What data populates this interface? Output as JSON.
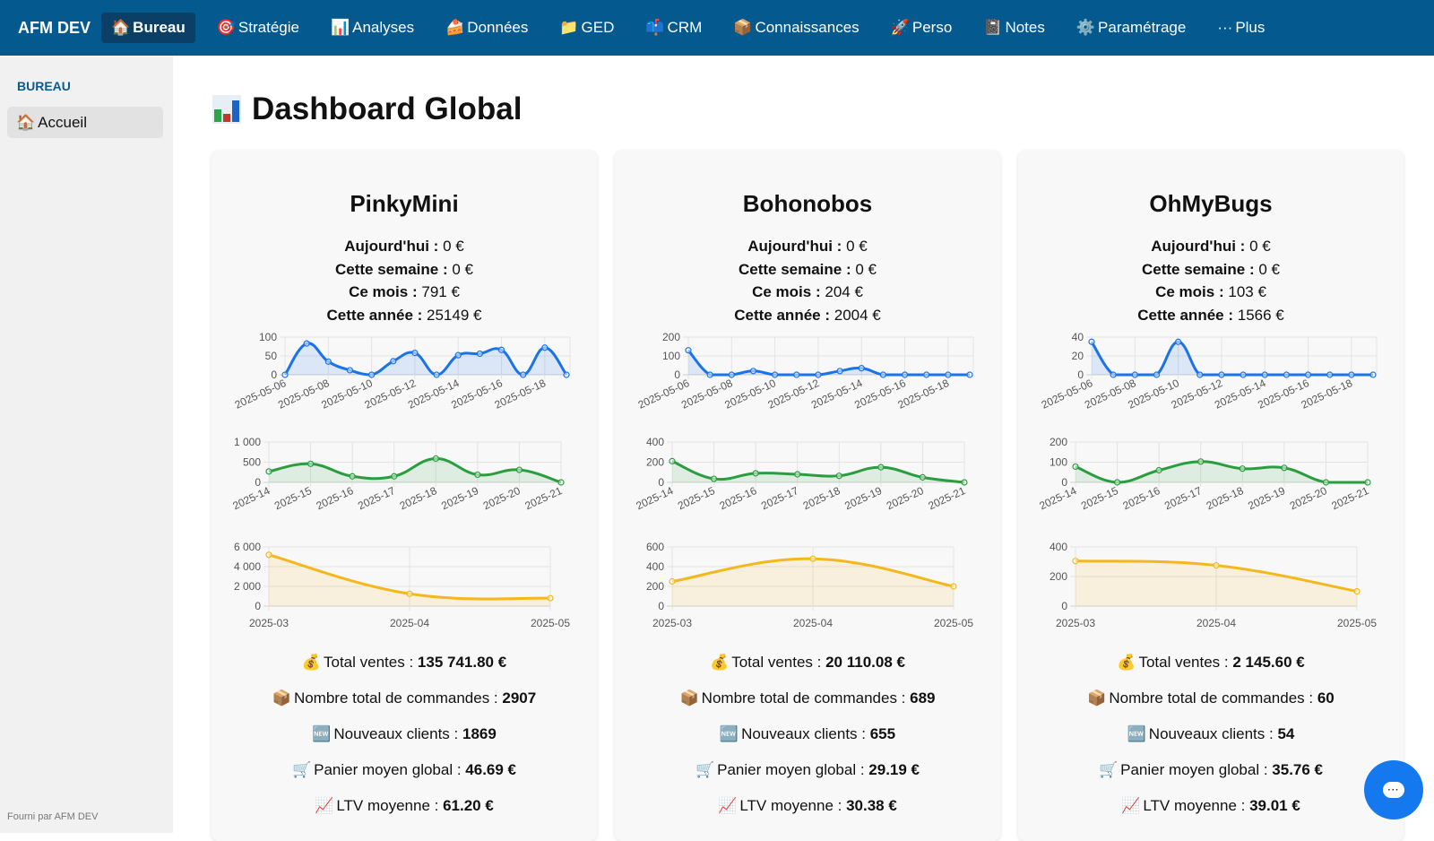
{
  "topbar": {
    "brand": "AFM DEV",
    "items": [
      {
        "icon": "🏠",
        "label": "Bureau",
        "active": true
      },
      {
        "icon": "🎯",
        "label": "Stratégie"
      },
      {
        "icon": "📊",
        "label": "Analyses"
      },
      {
        "icon": "🍰",
        "label": "Données"
      },
      {
        "icon": "📁",
        "label": "GED"
      },
      {
        "icon": "📫",
        "label": "CRM"
      },
      {
        "icon": "📦",
        "label": "Connaissances"
      },
      {
        "icon": "🚀",
        "label": "Perso"
      },
      {
        "icon": "📓",
        "label": "Notes"
      },
      {
        "icon": "⚙️",
        "label": "Paramétrage"
      },
      {
        "icon": "···",
        "label": "Plus"
      }
    ]
  },
  "sidebar": {
    "heading": "BUREAU",
    "items": [
      {
        "icon": "🏠",
        "label": "Accueil"
      }
    ],
    "footer": "Fourni par AFM DEV"
  },
  "page": {
    "title_icon": "📊",
    "title": "Dashboard Global"
  },
  "labels": {
    "today": "Aujourd'hui :",
    "week": "Cette semaine :",
    "month": "Ce mois :",
    "year": "Cette année :",
    "total_sales": "Total ventes :",
    "orders": "Nombre total de commandes :",
    "new_clients": "Nouveaux clients :",
    "basket": "Panier moyen global :",
    "ltv": "LTV moyenne :"
  },
  "stat_icons": {
    "total_sales": "💰",
    "orders": "📦",
    "new_clients": "🆕",
    "basket": "🛒",
    "ltv": "📈"
  },
  "colors": {
    "daily": "#1a73e8",
    "weekly": "#2a9d3f",
    "monthly": "#f4b81c",
    "topbar": "#04598f"
  },
  "stores": [
    {
      "name": "PinkyMini",
      "today": "0 €",
      "week": "0 €",
      "month": "791 €",
      "year": "25149 €",
      "total_sales": "135 741.80 €",
      "orders": "2907",
      "new_clients": "1869",
      "basket": "46.69 €",
      "ltv": "61.20 €"
    },
    {
      "name": "Bohonobos",
      "today": "0 €",
      "week": "0 €",
      "month": "204 €",
      "year": "2004 €",
      "total_sales": "20 110.08 €",
      "orders": "689",
      "new_clients": "655",
      "basket": "29.19 €",
      "ltv": "30.38 €"
    },
    {
      "name": "OhMyBugs",
      "today": "0 €",
      "week": "0 €",
      "month": "103 €",
      "year": "1566 €",
      "total_sales": "2 145.60 €",
      "orders": "60",
      "new_clients": "54",
      "basket": "35.76 €",
      "ltv": "39.01 €"
    }
  ],
  "chart_data": [
    {
      "store": "PinkyMini",
      "type": "area",
      "series_kind": "daily",
      "x": [
        "2025-05-06",
        "2025-05-07",
        "2025-05-08",
        "2025-05-09",
        "2025-05-10",
        "2025-05-11",
        "2025-05-12",
        "2025-05-13",
        "2025-05-14",
        "2025-05-15",
        "2025-05-16",
        "2025-05-17",
        "2025-05-18",
        "2025-05-19"
      ],
      "tick_labels": [
        "2025-05-06",
        "2025-05-08",
        "2025-05-10",
        "2025-05-12",
        "2025-05-14",
        "2025-05-16",
        "2025-05-18"
      ],
      "values": [
        0,
        83,
        35,
        12,
        0,
        36,
        58,
        0,
        52,
        56,
        66,
        0,
        72,
        0
      ],
      "ylim": [
        0,
        100
      ],
      "yticks": [
        "0",
        "50",
        "100"
      ],
      "grid": true
    },
    {
      "store": "PinkyMini",
      "type": "area",
      "series_kind": "weekly",
      "x": [
        "2025-14",
        "2025-15",
        "2025-16",
        "2025-17",
        "2025-18",
        "2025-19",
        "2025-20",
        "2025-21"
      ],
      "tick_labels": [
        "2025-14",
        "2025-15",
        "2025-16",
        "2025-17",
        "2025-18",
        "2025-19",
        "2025-20",
        "2025-21"
      ],
      "values": [
        270,
        460,
        150,
        150,
        590,
        190,
        310,
        0
      ],
      "ylim": [
        0,
        1000
      ],
      "yticks": [
        "0",
        "500",
        "1 000"
      ],
      "grid": true
    },
    {
      "store": "PinkyMini",
      "type": "area",
      "series_kind": "monthly",
      "x": [
        "2025-03",
        "2025-04",
        "2025-05"
      ],
      "tick_labels": [
        "2025-03",
        "2025-04",
        "2025-05"
      ],
      "values": [
        5200,
        1250,
        800
      ],
      "ylim": [
        0,
        6000
      ],
      "yticks": [
        "0",
        "2 000",
        "4 000",
        "6 000"
      ],
      "grid": true
    },
    {
      "store": "Bohonobos",
      "type": "area",
      "series_kind": "daily",
      "x": [
        "2025-05-06",
        "2025-05-07",
        "2025-05-08",
        "2025-05-09",
        "2025-05-10",
        "2025-05-11",
        "2025-05-12",
        "2025-05-13",
        "2025-05-14",
        "2025-05-15",
        "2025-05-16",
        "2025-05-17",
        "2025-05-18",
        "2025-05-19"
      ],
      "tick_labels": [
        "2025-05-06",
        "2025-05-08",
        "2025-05-10",
        "2025-05-12",
        "2025-05-14",
        "2025-05-16",
        "2025-05-18"
      ],
      "values": [
        130,
        0,
        0,
        20,
        0,
        0,
        0,
        20,
        35,
        0,
        0,
        0,
        0,
        0
      ],
      "ylim": [
        0,
        200
      ],
      "yticks": [
        "0",
        "100",
        "200"
      ],
      "grid": true
    },
    {
      "store": "Bohonobos",
      "type": "area",
      "series_kind": "weekly",
      "x": [
        "2025-14",
        "2025-15",
        "2025-16",
        "2025-17",
        "2025-18",
        "2025-19",
        "2025-20",
        "2025-21"
      ],
      "tick_labels": [
        "2025-14",
        "2025-15",
        "2025-16",
        "2025-17",
        "2025-18",
        "2025-19",
        "2025-20",
        "2025-21"
      ],
      "values": [
        210,
        35,
        90,
        80,
        65,
        150,
        50,
        0
      ],
      "ylim": [
        0,
        400
      ],
      "yticks": [
        "0",
        "200",
        "400"
      ],
      "grid": true
    },
    {
      "store": "Bohonobos",
      "type": "area",
      "series_kind": "monthly",
      "x": [
        "2025-03",
        "2025-04",
        "2025-05"
      ],
      "tick_labels": [
        "2025-03",
        "2025-04",
        "2025-05"
      ],
      "values": [
        250,
        480,
        200
      ],
      "ylim": [
        0,
        600
      ],
      "yticks": [
        "0",
        "200",
        "400",
        "600"
      ],
      "grid": true
    },
    {
      "store": "OhMyBugs",
      "type": "area",
      "series_kind": "daily",
      "x": [
        "2025-05-06",
        "2025-05-07",
        "2025-05-08",
        "2025-05-09",
        "2025-05-10",
        "2025-05-11",
        "2025-05-12",
        "2025-05-13",
        "2025-05-14",
        "2025-05-15",
        "2025-05-16",
        "2025-05-17",
        "2025-05-18",
        "2025-05-19"
      ],
      "tick_labels": [
        "2025-05-06",
        "2025-05-08",
        "2025-05-10",
        "2025-05-12",
        "2025-05-14",
        "2025-05-16",
        "2025-05-18"
      ],
      "values": [
        35,
        0,
        0,
        0,
        35,
        0,
        0,
        0,
        0,
        0,
        0,
        0,
        0,
        0
      ],
      "ylim": [
        0,
        40
      ],
      "yticks": [
        "0",
        "20",
        "40"
      ],
      "grid": true
    },
    {
      "store": "OhMyBugs",
      "type": "area",
      "series_kind": "weekly",
      "x": [
        "2025-14",
        "2025-15",
        "2025-16",
        "2025-17",
        "2025-18",
        "2025-19",
        "2025-20",
        "2025-21"
      ],
      "tick_labels": [
        "2025-14",
        "2025-15",
        "2025-16",
        "2025-17",
        "2025-18",
        "2025-19",
        "2025-20",
        "2025-21"
      ],
      "values": [
        78,
        0,
        60,
        103,
        68,
        72,
        0,
        0
      ],
      "ylim": [
        0,
        200
      ],
      "yticks": [
        "0",
        "100",
        "200"
      ],
      "grid": true
    },
    {
      "store": "OhMyBugs",
      "type": "area",
      "series_kind": "monthly",
      "x": [
        "2025-03",
        "2025-04",
        "2025-05"
      ],
      "tick_labels": [
        "2025-03",
        "2025-04",
        "2025-05"
      ],
      "values": [
        305,
        275,
        100
      ],
      "ylim": [
        0,
        400
      ],
      "yticks": [
        "0",
        "200",
        "400"
      ],
      "grid": true
    }
  ],
  "chat": {
    "icon": "chat-bubble-icon",
    "glyph": "···"
  }
}
